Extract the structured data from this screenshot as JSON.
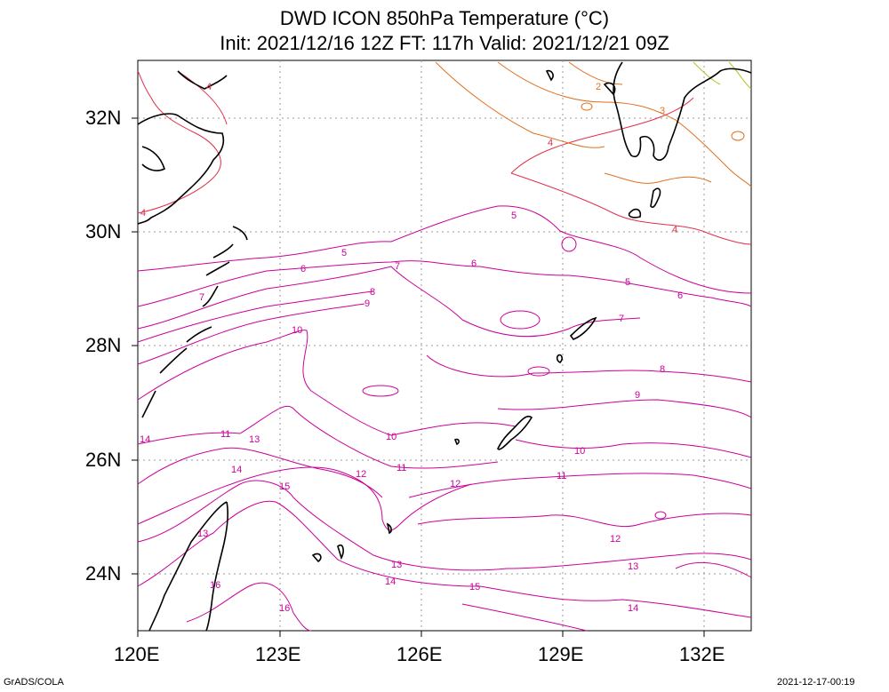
{
  "title_line1": "DWD ICON 850hPa Temperature (°C)",
  "title_line2": "Init: 2021/12/16 12Z  FT: 117h  Valid: 2021/12/21 09Z",
  "lat_labels": [
    "32N",
    "30N",
    "28N",
    "26N",
    "24N"
  ],
  "lon_labels": [
    "120E",
    "123E",
    "126E",
    "129E",
    "132E"
  ],
  "footer_left": "GrADS/COLA",
  "footer_right": "2021-12-17-00:19",
  "map_extent": {
    "lon": [
      120,
      133
    ],
    "lat": [
      23,
      33
    ]
  },
  "contour_colors": {
    "warm": "#cc0099",
    "mid": "#e0304a",
    "cool": "#e07020",
    "cold": "#b8c020"
  },
  "contour_labels": [
    "2",
    "3",
    "4",
    "4",
    "4",
    "4",
    "5",
    "5",
    "5",
    "6",
    "6",
    "6",
    "7",
    "7",
    "7",
    "8",
    "8",
    "9",
    "9",
    "10",
    "10",
    "10",
    "11",
    "11",
    "11",
    "12",
    "12",
    "12",
    "13",
    "13",
    "13",
    "13",
    "14",
    "14",
    "14",
    "14",
    "15",
    "15",
    "16",
    "16"
  ]
}
